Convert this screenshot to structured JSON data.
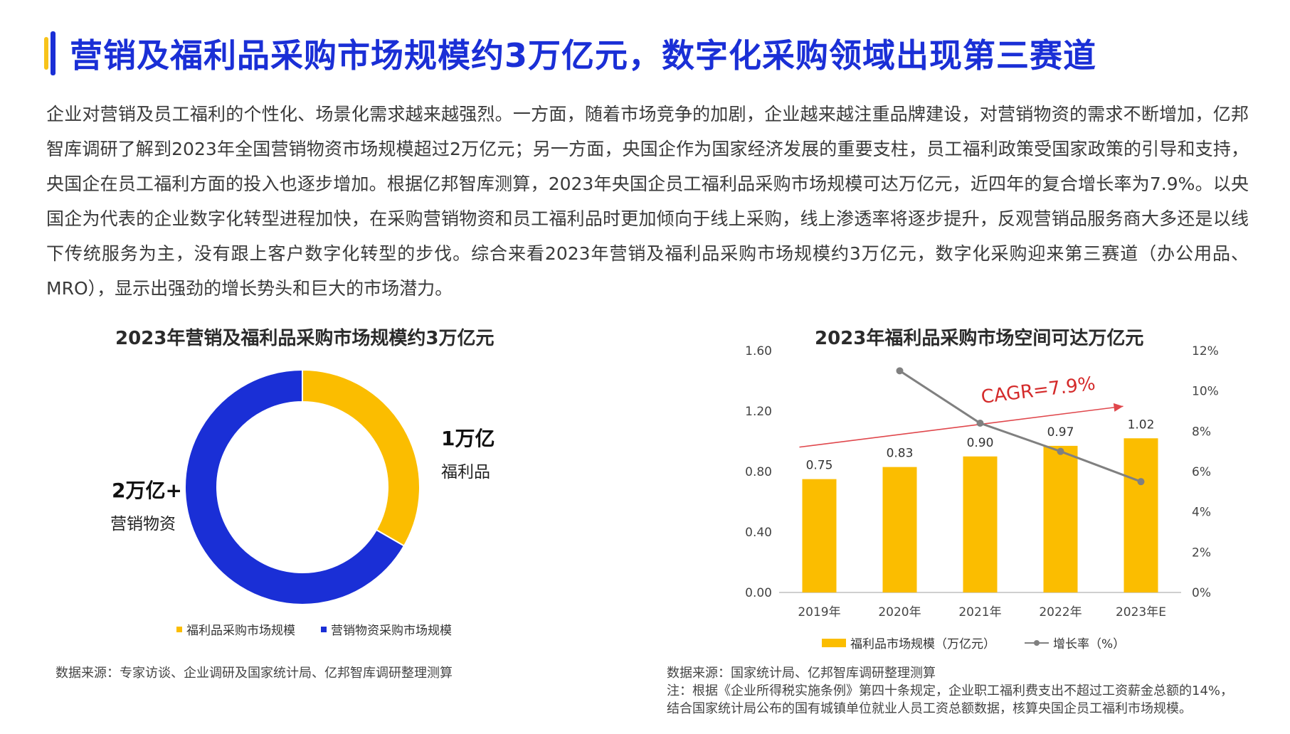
{
  "header": {
    "title": "营销及福利品采购市场规模约3万亿元，数字化采购领域出现第三赛道"
  },
  "body": {
    "paragraph": "企业对营销及员工福利的个性化、场景化需求越来越强烈。一方面，随着市场竞争的加剧，企业越来越注重品牌建设，对营销物资的需求不断增加，亿邦智库调研了解到2023年全国营销物资市场规模超过2万亿元；另一方面，央国企作为国家经济发展的重要支柱，员工福利政策受国家政策的引导和支持，央国企在员工福利方面的投入也逐步增加。根据亿邦智库测算，2023年央国企员工福利品采购市场规模可达万亿元，近四年的复合增长率为7.9%。以央国企为代表的企业数字化转型进程加快，在采购营销物资和员工福利品时更加倾向于线上采购，线上渗透率将逐步提升，反观营销品服务商大多还是以线下传统服务为主，没有跟上客户数字化转型的步伐。综合来看2023年营销及福利品采购市场规模约3万亿元，数字化采购迎来第三赛道（办公用品、MRO），显示出强劲的增长势头和巨大的市场潜力。"
  },
  "donut": {
    "source": "数据来源：专家访谈、企业调研及国家统计局、亿邦智库调研整理测算"
  },
  "bar": {
    "source_line1": "数据来源：国家统计局、亿邦智库调研整理测算",
    "source_line2": "注：根据《企业所得税实施条例》第四十条规定，企业职工福利费支出不超过工资薪金总额的14%，",
    "source_line3": "结合国家统计局公布的国有城镇单位就业人员工资总额数据，核算央国企员工福利市场规模。"
  },
  "chart_data": [
    {
      "type": "pie",
      "variant": "donut",
      "title": "2023年营销及福利品采购市场规模约3万亿元",
      "slices": [
        {
          "name": "福利品采购市场规模",
          "value": 1,
          "value_label": "1万亿",
          "label": "福利品",
          "color": "#fbbd00"
        },
        {
          "name": "营销物资采购市场规模",
          "value": 2,
          "value_label": "2万亿+",
          "label": "营销物资",
          "color": "#1a2fd6"
        }
      ],
      "legend": "bottom"
    },
    {
      "type": "bar",
      "title": "2023年福利品采购市场空间可达万亿元",
      "categories": [
        "2019年",
        "2020年",
        "2021年",
        "2022年",
        "2023年E"
      ],
      "series": [
        {
          "name": "福利品市场规模（万亿元）",
          "type": "bar",
          "axis": "left",
          "values": [
            0.75,
            0.83,
            0.9,
            0.97,
            1.02
          ],
          "color": "#fbbd00"
        },
        {
          "name": "增长率（%）",
          "type": "line",
          "axis": "right",
          "values": [
            null,
            11.0,
            8.4,
            7.0,
            5.5
          ],
          "color": "#808080"
        }
      ],
      "ylim": [
        0,
        1.6
      ],
      "yticks": [
        "0.00",
        "0.40",
        "0.80",
        "1.20",
        "1.60"
      ],
      "y2lim": [
        0,
        12
      ],
      "y2ticks": [
        "0%",
        "2%",
        "4%",
        "6%",
        "8%",
        "10%",
        "12%"
      ],
      "annotation": "CAGR=7.9%",
      "annotation_color": "#d42a2a",
      "grid": false,
      "legend": "bottom"
    }
  ]
}
